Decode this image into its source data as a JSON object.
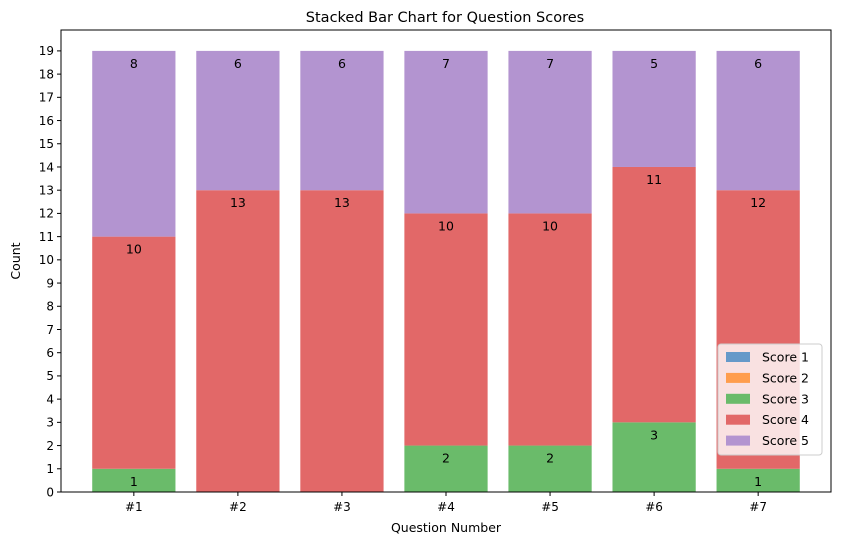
{
  "chart_data": {
    "type": "bar",
    "stacked": true,
    "title": "Stacked Bar Chart for Question Scores",
    "xlabel": "Question Number",
    "ylabel": "Count",
    "categories": [
      "#1",
      "#2",
      "#3",
      "#4",
      "#5",
      "#6",
      "#7"
    ],
    "ylim": [
      0,
      19.9
    ],
    "yticks": [
      0,
      1,
      2,
      3,
      4,
      5,
      6,
      7,
      8,
      9,
      10,
      11,
      12,
      13,
      14,
      15,
      16,
      17,
      18,
      19
    ],
    "grid": false,
    "legend_position": "lower-right",
    "series": [
      {
        "name": "Score 1",
        "color": "#6699c9",
        "values": [
          0,
          0,
          0,
          0,
          0,
          0,
          0
        ]
      },
      {
        "name": "Score 2",
        "color": "#ff9d4d",
        "values": [
          0,
          0,
          0,
          0,
          0,
          0,
          0
        ]
      },
      {
        "name": "Score 3",
        "color": "#6abb6a",
        "values": [
          1,
          0,
          0,
          2,
          2,
          3,
          1
        ]
      },
      {
        "name": "Score 4",
        "color": "#e26868",
        "values": [
          10,
          13,
          13,
          10,
          10,
          11,
          12
        ]
      },
      {
        "name": "Score 5",
        "color": "#b394d0",
        "values": [
          8,
          6,
          6,
          7,
          7,
          5,
          6
        ]
      }
    ]
  }
}
